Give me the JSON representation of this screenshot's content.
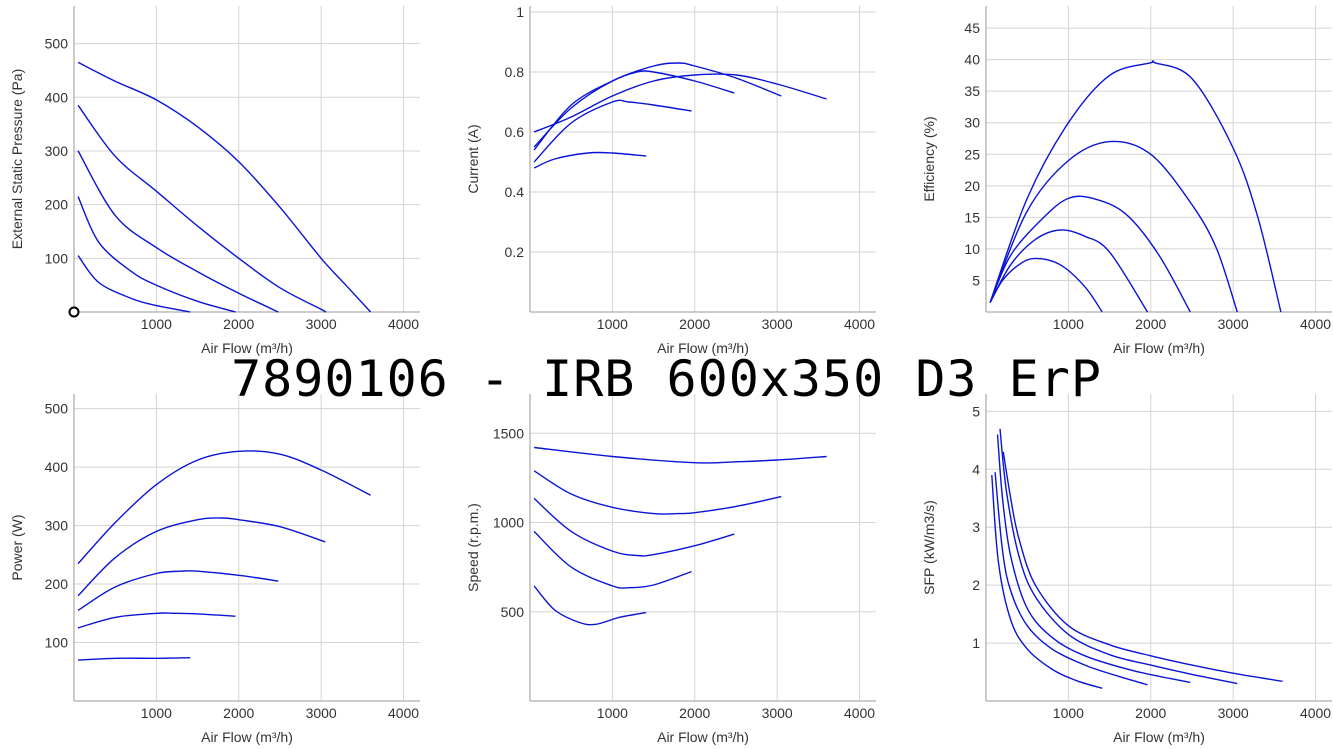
{
  "page_title": "7890106 - IRB 600x350 D3 ErP",
  "series_color": "#0a14d6",
  "chart_data": [
    {
      "id": "pressure",
      "type": "line",
      "xlabel": "Air Flow (m³/h)",
      "ylabel": "External Static Pressure (Pa)",
      "xlim": [
        0,
        4200
      ],
      "ylim": [
        0,
        570
      ],
      "xticks": [
        1000,
        2000,
        3000,
        4000
      ],
      "yticks": [
        100,
        200,
        300,
        400,
        500
      ],
      "marker": {
        "x": 0,
        "y": 0
      },
      "series": [
        {
          "x": [
            50,
            500,
            1000,
            1500,
            2000,
            2500,
            3000,
            3300,
            3600
          ],
          "y": [
            465,
            430,
            395,
            345,
            280,
            195,
            100,
            50,
            0
          ]
        },
        {
          "x": [
            50,
            500,
            1000,
            1500,
            2000,
            2500,
            3000,
            3050
          ],
          "y": [
            385,
            290,
            225,
            160,
            100,
            45,
            5,
            0
          ]
        },
        {
          "x": [
            50,
            500,
            1000,
            1500,
            2000,
            2480
          ],
          "y": [
            300,
            180,
            120,
            75,
            35,
            0
          ]
        },
        {
          "x": [
            50,
            300,
            700,
            1000,
            1500,
            1960
          ],
          "y": [
            215,
            130,
            75,
            50,
            20,
            0
          ]
        },
        {
          "x": [
            50,
            300,
            700,
            1000,
            1410
          ],
          "y": [
            105,
            55,
            25,
            12,
            0
          ]
        }
      ]
    },
    {
      "id": "current",
      "type": "line",
      "xlabel": "Air Flow (m³/h)",
      "ylabel": "Current (A)",
      "xlim": [
        0,
        4200
      ],
      "ylim": [
        0,
        1.02
      ],
      "xticks": [
        1000,
        2000,
        3000,
        4000
      ],
      "yticks": [
        0.2,
        0.4,
        0.6,
        0.8,
        1
      ],
      "series": [
        {
          "x": [
            50,
            500,
            1000,
            1500,
            2000,
            2500,
            3000,
            3600
          ],
          "y": [
            0.6,
            0.65,
            0.72,
            0.77,
            0.79,
            0.79,
            0.76,
            0.71
          ]
        },
        {
          "x": [
            50,
            500,
            1000,
            1500,
            1800,
            2000,
            2500,
            3050
          ],
          "y": [
            0.55,
            0.68,
            0.77,
            0.82,
            0.83,
            0.82,
            0.78,
            0.72
          ]
        },
        {
          "x": [
            50,
            500,
            1000,
            1300,
            1500,
            2000,
            2480
          ],
          "y": [
            0.54,
            0.69,
            0.77,
            0.8,
            0.8,
            0.77,
            0.73
          ]
        },
        {
          "x": [
            50,
            500,
            1000,
            1200,
            1500,
            1960
          ],
          "y": [
            0.5,
            0.63,
            0.7,
            0.7,
            0.69,
            0.67
          ]
        },
        {
          "x": [
            50,
            300,
            700,
            1000,
            1410
          ],
          "y": [
            0.48,
            0.51,
            0.53,
            0.53,
            0.52
          ]
        }
      ]
    },
    {
      "id": "efficiency",
      "type": "line",
      "xlabel": "Air Flow (m³/h)",
      "ylabel": "Efficiency (%)",
      "xlim": [
        0,
        4200
      ],
      "ylim": [
        0,
        48.5
      ],
      "xticks": [
        1000,
        2000,
        3000,
        4000
      ],
      "yticks": [
        5,
        10,
        15,
        20,
        25,
        30,
        35,
        40,
        45
      ],
      "series": [
        {
          "x": [
            50,
            500,
            1000,
            1500,
            2000,
            2050,
            2500,
            3000,
            3300,
            3580
          ],
          "y": [
            1.5,
            18,
            30,
            37.5,
            39.5,
            39.5,
            37,
            26,
            15,
            0
          ]
        },
        {
          "x": [
            50,
            500,
            1000,
            1500,
            2000,
            2500,
            2800,
            3050
          ],
          "y": [
            1.5,
            16,
            24,
            27,
            25,
            17,
            10,
            0
          ]
        },
        {
          "x": [
            50,
            300,
            700,
            1000,
            1300,
            1700,
            2100,
            2480
          ],
          "y": [
            1.5,
            9,
            15,
            18,
            18,
            15.5,
            9,
            0
          ]
        },
        {
          "x": [
            50,
            300,
            600,
            900,
            1200,
            1500,
            1960
          ],
          "y": [
            1.5,
            7.5,
            11.5,
            13,
            12,
            9.5,
            0
          ]
        },
        {
          "x": [
            50,
            200,
            400,
            600,
            900,
            1200,
            1410
          ],
          "y": [
            1.5,
            5,
            7.5,
            8.5,
            7.5,
            4,
            0
          ]
        }
      ]
    },
    {
      "id": "power",
      "type": "line",
      "xlabel": "Air Flow (m³/h)",
      "ylabel": "Power (W)",
      "xlim": [
        0,
        4200
      ],
      "ylim": [
        0,
        525
      ],
      "xticks": [
        1000,
        2000,
        3000,
        4000
      ],
      "yticks": [
        100,
        200,
        300,
        400,
        500
      ],
      "series": [
        {
          "x": [
            50,
            500,
            1000,
            1500,
            2000,
            2500,
            3000,
            3600
          ],
          "y": [
            235,
            305,
            370,
            412,
            427,
            422,
            395,
            352
          ]
        },
        {
          "x": [
            50,
            500,
            1000,
            1500,
            1800,
            2000,
            2500,
            3050
          ],
          "y": [
            180,
            245,
            290,
            310,
            313,
            310,
            298,
            272
          ]
        },
        {
          "x": [
            50,
            500,
            1000,
            1300,
            1500,
            2000,
            2480
          ],
          "y": [
            155,
            195,
            218,
            222,
            222,
            215,
            205
          ]
        },
        {
          "x": [
            50,
            500,
            1000,
            1200,
            1500,
            1960
          ],
          "y": [
            125,
            143,
            150,
            150,
            149,
            145
          ]
        },
        {
          "x": [
            50,
            500,
            1000,
            1410
          ],
          "y": [
            70,
            73,
            73,
            74
          ]
        }
      ]
    },
    {
      "id": "speed",
      "type": "line",
      "xlabel": "Air Flow (m³/h)",
      "ylabel": "Speed (r.p.m.)",
      "xlim": [
        0,
        4200
      ],
      "ylim": [
        0,
        1720
      ],
      "xticks": [
        1000,
        2000,
        3000,
        4000
      ],
      "yticks": [
        500,
        1000,
        1500
      ],
      "series": [
        {
          "x": [
            50,
            1000,
            2000,
            2500,
            3000,
            3600
          ],
          "y": [
            1420,
            1370,
            1335,
            1340,
            1350,
            1370
          ]
        },
        {
          "x": [
            50,
            500,
            1000,
            1500,
            1800,
            2000,
            2500,
            3050
          ],
          "y": [
            1290,
            1160,
            1085,
            1050,
            1050,
            1055,
            1090,
            1145
          ]
        },
        {
          "x": [
            50,
            500,
            1000,
            1300,
            1500,
            2000,
            2480
          ],
          "y": [
            1135,
            950,
            840,
            815,
            820,
            870,
            935
          ]
        },
        {
          "x": [
            50,
            500,
            1000,
            1200,
            1500,
            1960
          ],
          "y": [
            950,
            750,
            645,
            635,
            650,
            725
          ]
        },
        {
          "x": [
            50,
            300,
            600,
            800,
            1100,
            1410
          ],
          "y": [
            645,
            510,
            440,
            430,
            470,
            495
          ]
        }
      ]
    },
    {
      "id": "sfp",
      "type": "line",
      "xlabel": "Air Flow (m³/h)",
      "ylabel": "SFP (kW/m3/s)",
      "xlim": [
        0,
        4200
      ],
      "ylim": [
        0,
        5.3
      ],
      "xticks": [
        1000,
        2000,
        3000,
        4000
      ],
      "yticks": [
        1,
        2,
        3,
        4,
        5
      ],
      "series": [
        {
          "x": [
            210,
            300,
            400,
            600,
            1000,
            1500,
            2000,
            2500,
            3000,
            3600
          ],
          "y": [
            4.3,
            3.5,
            2.8,
            2.0,
            1.3,
            0.97,
            0.78,
            0.62,
            0.48,
            0.34
          ]
        },
        {
          "x": [
            170,
            250,
            400,
            600,
            1000,
            1500,
            2000,
            2500,
            3050
          ],
          "y": [
            4.7,
            3.6,
            2.5,
            1.8,
            1.15,
            0.8,
            0.62,
            0.46,
            0.3
          ]
        },
        {
          "x": [
            140,
            200,
            300,
            500,
            800,
            1200,
            1800,
            2480
          ],
          "y": [
            4.6,
            3.5,
            2.5,
            1.6,
            1.1,
            0.78,
            0.52,
            0.32
          ]
        },
        {
          "x": [
            110,
            200,
            300,
            500,
            800,
            1200,
            1600,
            1960
          ],
          "y": [
            3.95,
            2.6,
            1.9,
            1.3,
            0.9,
            0.62,
            0.43,
            0.28
          ]
        },
        {
          "x": [
            70,
            150,
            300,
            500,
            800,
            1100,
            1410
          ],
          "y": [
            3.9,
            2.4,
            1.4,
            0.9,
            0.55,
            0.35,
            0.22
          ]
        }
      ]
    }
  ]
}
